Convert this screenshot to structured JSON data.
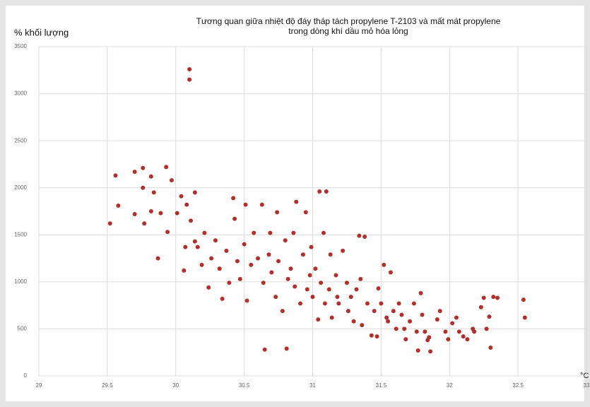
{
  "chart_data": {
    "type": "scatter",
    "title": [
      "Tương quan giữa nhiệt độ đáy tháp tách propylene T-2103 và mất mát propylene",
      "trong dòng khí dầu mỏ hóa lỏng"
    ],
    "y_label": "% khối lượng",
    "x_label": "°C",
    "xlim": [
      29,
      33
    ],
    "xticks": [
      29,
      29.5,
      30,
      30.5,
      31,
      31.5,
      32,
      32.5,
      33
    ],
    "ylim": [
      0,
      3500
    ],
    "yticks": [
      0,
      500,
      1000,
      1500,
      2000,
      2500,
      3000,
      3500
    ],
    "grid": true,
    "color": "#b0302c",
    "x": [
      30.1,
      30.1,
      29.52,
      29.56,
      29.58,
      29.7,
      29.7,
      29.76,
      29.76,
      29.77,
      29.82,
      29.82,
      29.84,
      29.87,
      29.89,
      29.93,
      29.94,
      29.97,
      30.01,
      30.04,
      30.06,
      30.07,
      30.08,
      30.11,
      30.14,
      30.14,
      30.16,
      30.19,
      30.21,
      30.24,
      30.26,
      30.29,
      30.32,
      30.34,
      30.37,
      30.39,
      30.42,
      30.43,
      30.45,
      30.47,
      30.5,
      30.51,
      30.52,
      30.55,
      30.57,
      30.6,
      30.63,
      30.64,
      30.65,
      30.68,
      30.69,
      30.7,
      30.73,
      30.74,
      30.75,
      30.78,
      30.8,
      30.81,
      30.82,
      30.84,
      30.86,
      30.87,
      30.88,
      30.91,
      30.93,
      30.95,
      30.96,
      30.98,
      30.99,
      31.0,
      31.02,
      31.04,
      31.05,
      31.06,
      31.08,
      31.09,
      31.1,
      31.12,
      31.13,
      31.14,
      31.17,
      31.18,
      31.19,
      31.22,
      31.25,
      31.26,
      31.28,
      31.3,
      31.32,
      31.34,
      31.35,
      31.36,
      31.38,
      31.4,
      31.43,
      31.45,
      31.47,
      31.48,
      31.5,
      31.52,
      31.54,
      31.55,
      31.57,
      31.59,
      31.61,
      31.63,
      31.65,
      31.67,
      31.68,
      31.71,
      31.74,
      31.76,
      31.77,
      31.79,
      31.8,
      31.82,
      31.84,
      31.85,
      31.86,
      31.91,
      31.93,
      31.97,
      31.99,
      32.02,
      32.05,
      32.07,
      32.1,
      32.13,
      32.17,
      32.18,
      32.23,
      32.25,
      32.27,
      32.29,
      32.3,
      32.32,
      32.35,
      32.54,
      32.55
    ],
    "values": [
      3260,
      3150,
      1620,
      2130,
      1810,
      2170,
      1720,
      2210,
      2000,
      1620,
      2120,
      1750,
      1950,
      1250,
      1730,
      2220,
      1530,
      2080,
      1730,
      1910,
      1120,
      1370,
      1820,
      1650,
      1950,
      1430,
      1370,
      1180,
      1520,
      940,
      1250,
      1440,
      1140,
      820,
      1330,
      990,
      1890,
      1670,
      1220,
      1030,
      1400,
      1820,
      800,
      1180,
      1520,
      1250,
      1820,
      990,
      280,
      1290,
      1520,
      1100,
      840,
      1740,
      1220,
      690,
      1440,
      290,
      1030,
      1140,
      1520,
      950,
      1850,
      770,
      1290,
      1740,
      920,
      1070,
      1370,
      840,
      1140,
      600,
      1960,
      990,
      1520,
      770,
      1960,
      920,
      1290,
      620,
      1070,
      840,
      770,
      1330,
      990,
      690,
      840,
      580,
      920,
      1490,
      1030,
      540,
      1480,
      770,
      430,
      690,
      420,
      930,
      770,
      1180,
      620,
      580,
      1100,
      690,
      500,
      770,
      650,
      500,
      390,
      580,
      770,
      470,
      270,
      880,
      650,
      470,
      380,
      410,
      260,
      600,
      690,
      470,
      390,
      560,
      620,
      470,
      420,
      390,
      500,
      470,
      730,
      830,
      500,
      630,
      300,
      840,
      830,
      810,
      620
    ]
  }
}
